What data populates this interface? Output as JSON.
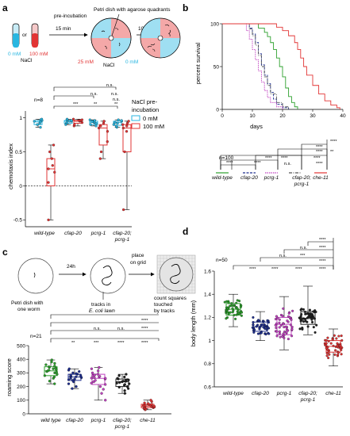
{
  "panel_labels": [
    "a",
    "b",
    "c",
    "d"
  ],
  "panel_a": {
    "schematic": {
      "dish_label": "Petri dish with agarose quadrants",
      "preincubation_label": "pre-incubation",
      "preincubation_time": "15 min",
      "low_conc": "0 mM",
      "or_text": "or",
      "high_conc": "100 mM",
      "nacl": "NaCl",
      "quad_25": "25 mM",
      "quad_0": "0 mM",
      "time_10": "10 min"
    },
    "n_label": "n=8",
    "legend_title": "NaCl pre-incubation",
    "legend": [
      "0 mM",
      "100 mM"
    ],
    "significance": [
      "***",
      "**",
      "**",
      "n.s.",
      "n.s.",
      "n.s.",
      "n.s."
    ],
    "colors": {
      "low": "#29b6e0",
      "high": "#e23434"
    }
  },
  "panel_b": {
    "n_label": "n=100",
    "significance": [
      "****",
      "****",
      "****",
      "****",
      "****",
      "n.s.",
      "****",
      "****",
      "****",
      "**",
      "****"
    ]
  },
  "panel_c": {
    "schematic": {
      "dish1": "Petri dish with one worm",
      "time": "24h",
      "tracks": "tracks in",
      "lawn": "E. coli lawn",
      "place": "place on grid",
      "count": "count squares touched by tracks"
    },
    "n_label": "n=21",
    "significance": [
      "**",
      "***",
      "****",
      "****",
      "n.s.",
      "n.s.",
      "****",
      "****"
    ]
  },
  "panel_d": {
    "n_label": "n=50",
    "significance": [
      "****",
      "****",
      "****",
      "****",
      "n.s.",
      "****",
      "***",
      "n.s.",
      "****",
      "****"
    ]
  },
  "chart_data": [
    {
      "type": "box",
      "panel": "a",
      "title": "",
      "ylabel": "chemotaxis index",
      "ylim": [
        -0.6,
        1.1
      ],
      "yticks": [
        -0.5,
        0,
        0.5,
        1.0
      ],
      "categories": [
        "wild-type",
        "cfap-20",
        "pcrg-1",
        "cfap-20; pcrg-1"
      ],
      "series": [
        {
          "name": "0 mM",
          "color": "#29b6e0",
          "box": [
            [
              0.86,
              0.9,
              0.94,
              0.96,
              0.98
            ],
            [
              0.9,
              0.92,
              0.95,
              0.96,
              0.98
            ],
            [
              0.88,
              0.9,
              0.93,
              0.95,
              0.97
            ],
            [
              0.86,
              0.89,
              0.93,
              0.95,
              0.97
            ]
          ],
          "points": [
            [
              0.86,
              0.9,
              0.92,
              0.94,
              0.95,
              0.96,
              0.97,
              0.98
            ],
            [
              0.9,
              0.92,
              0.93,
              0.95,
              0.95,
              0.96,
              0.97,
              0.98
            ],
            [
              0.88,
              0.9,
              0.91,
              0.93,
              0.94,
              0.95,
              0.96,
              0.97
            ],
            [
              0.86,
              0.88,
              0.9,
              0.92,
              0.93,
              0.95,
              0.96,
              0.97
            ]
          ]
        },
        {
          "name": "100 mM",
          "color": "#e23434",
          "box": [
            [
              -0.5,
              0.0,
              0.25,
              0.4,
              0.6
            ],
            [
              0.88,
              0.92,
              0.95,
              0.96,
              0.98
            ],
            [
              0.4,
              0.6,
              0.85,
              0.9,
              0.95
            ],
            [
              -0.35,
              0.5,
              0.85,
              0.9,
              0.95
            ]
          ],
          "points": [
            [
              -0.5,
              0.05,
              0.2,
              0.25,
              0.3,
              0.4,
              0.5,
              0.6
            ],
            [
              0.88,
              0.9,
              0.93,
              0.95,
              0.96,
              0.96,
              0.97,
              0.98
            ],
            [
              0.4,
              0.5,
              0.65,
              0.8,
              0.85,
              0.88,
              0.92,
              0.95
            ],
            [
              -0.35,
              0.5,
              0.8,
              0.85,
              0.88,
              0.9,
              0.92,
              0.95
            ]
          ]
        }
      ]
    },
    {
      "type": "line",
      "panel": "b",
      "title": "",
      "xlabel": "days",
      "ylabel": "percent survival",
      "xlim": [
        0,
        40
      ],
      "ylim": [
        0,
        100
      ],
      "xticks": [
        0,
        10,
        20,
        30,
        40
      ],
      "yticks": [
        0,
        50,
        100
      ],
      "series": [
        {
          "name": "wild-type",
          "color": "#2ca02c",
          "x": [
            0,
            10,
            12,
            14,
            15,
            16,
            17,
            18,
            19,
            20,
            21,
            22,
            23,
            24,
            25
          ],
          "y": [
            100,
            100,
            95,
            90,
            85,
            78,
            70,
            60,
            50,
            38,
            25,
            15,
            8,
            3,
            0
          ]
        },
        {
          "name": "cfap-20",
          "color": "#1f2f8f",
          "x": [
            0,
            8,
            9,
            10,
            11,
            12,
            13,
            14,
            15,
            16,
            17,
            18,
            20,
            22
          ],
          "y": [
            100,
            100,
            95,
            88,
            78,
            65,
            52,
            40,
            30,
            20,
            12,
            6,
            2,
            0
          ]
        },
        {
          "name": "pcrg-1",
          "color": "#c040c0",
          "x": [
            0,
            7,
            8,
            9,
            10,
            11,
            12,
            13,
            14,
            15,
            16,
            18,
            20
          ],
          "y": [
            100,
            100,
            92,
            82,
            70,
            58,
            45,
            32,
            22,
            14,
            8,
            3,
            0
          ]
        },
        {
          "name": "cfap-20; pcrg-1",
          "color": "#555555",
          "x": [
            0,
            8,
            9,
            10,
            11,
            12,
            13,
            14,
            15,
            16,
            18,
            20,
            22
          ],
          "y": [
            100,
            100,
            94,
            86,
            75,
            63,
            50,
            38,
            28,
            18,
            8,
            3,
            0
          ]
        },
        {
          "name": "che-11",
          "color": "#e23434",
          "x": [
            0,
            16,
            18,
            20,
            22,
            24,
            25,
            26,
            27,
            28,
            30,
            32,
            34,
            36,
            38,
            39
          ],
          "y": [
            100,
            100,
            96,
            92,
            86,
            78,
            70,
            60,
            50,
            40,
            28,
            18,
            10,
            5,
            2,
            0
          ]
        }
      ]
    },
    {
      "type": "box",
      "panel": "c",
      "title": "",
      "ylabel": "roaming score",
      "ylim": [
        0,
        500
      ],
      "yticks": [
        0,
        100,
        200,
        300,
        400,
        500
      ],
      "categories": [
        "wild type",
        "cfap-20",
        "pcrg-1",
        "cfap-20; pcrg-1",
        "che-11"
      ],
      "series": [
        {
          "name": "roaming",
          "colors": [
            "#2ca02c",
            "#1f2f8f",
            "#c040c0",
            "#222222",
            "#e23434"
          ],
          "box": [
            [
              220,
              280,
              315,
              345,
              395
            ],
            [
              185,
              245,
              270,
              290,
              330
            ],
            [
              100,
              215,
              260,
              290,
              340
            ],
            [
              150,
              200,
              235,
              255,
              290
            ],
            [
              30,
              45,
              55,
              70,
              100
            ]
          ],
          "points": [
            [
              220,
              240,
              260,
              270,
              280,
              290,
              300,
              305,
              310,
              315,
              320,
              325,
              330,
              335,
              340,
              345,
              350,
              360,
              370,
              380,
              395
            ],
            [
              185,
              200,
              220,
              235,
              245,
              250,
              255,
              260,
              265,
              270,
              272,
              275,
              278,
              282,
              285,
              290,
              295,
              300,
              310,
              320,
              330
            ],
            [
              100,
              150,
              180,
              200,
              215,
              225,
              235,
              245,
              255,
              260,
              262,
              265,
              270,
              275,
              280,
              285,
              290,
              300,
              315,
              330,
              340
            ],
            [
              150,
              170,
              185,
              195,
              200,
              210,
              215,
              220,
              225,
              230,
              235,
              238,
              240,
              245,
              248,
              250,
              255,
              260,
              270,
              280,
              290
            ],
            [
              30,
              35,
              40,
              42,
              45,
              48,
              50,
              52,
              54,
              55,
              56,
              58,
              60,
              62,
              65,
              68,
              70,
              75,
              80,
              90,
              100
            ]
          ]
        }
      ]
    },
    {
      "type": "box",
      "panel": "d",
      "title": "",
      "ylabel": "body length (mm)",
      "ylim": [
        0.6,
        1.6
      ],
      "yticks": [
        0.6,
        0.8,
        1.0,
        1.2,
        1.4,
        1.6
      ],
      "categories": [
        "wild-type",
        "cfap-20",
        "pcrg-1",
        "cfap-20; pcrg-1",
        "che-11"
      ],
      "series": [
        {
          "name": "length",
          "colors": [
            "#2ca02c",
            "#1f2f8f",
            "#c040c0",
            "#222222",
            "#e23434"
          ],
          "box": [
            [
              1.12,
              1.22,
              1.27,
              1.32,
              1.4
            ],
            [
              1.0,
              1.08,
              1.12,
              1.16,
              1.25
            ],
            [
              0.92,
              1.05,
              1.14,
              1.2,
              1.38
            ],
            [
              1.05,
              1.14,
              1.19,
              1.25,
              1.47
            ],
            [
              0.78,
              0.9,
              0.95,
              1.0,
              1.1
            ]
          ]
        }
      ]
    }
  ]
}
